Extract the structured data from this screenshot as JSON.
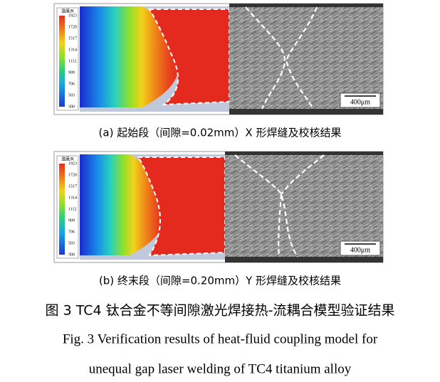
{
  "panels": [
    {
      "colorbar_title": "温度/K",
      "colorbar_ticks": [
        1923,
        1720,
        1517,
        1314,
        1112,
        909,
        706,
        503,
        300
      ],
      "scale_bar": "400μm",
      "caption": "(a)  起始段（间隙=0.02mm）X 形焊缝及校核结果"
    },
    {
      "colorbar_title": "温度/K",
      "colorbar_ticks": [
        1923,
        1720,
        1517,
        1314,
        1112,
        909,
        706,
        503,
        300
      ],
      "scale_bar": "400μm",
      "caption": "(b)  终末段（间隙=0.20mm）Y 形焊缝及校核结果"
    }
  ],
  "figure": {
    "title_cn": "图 3 TC4 钛合金不等间隙激光焊接热-流耦合模型验证结果",
    "title_en_line1": "Fig. 3 Verification results of heat-fluid coupling model for",
    "title_en_line2": "unequal gap laser welding of TC4 titanium alloy"
  }
}
